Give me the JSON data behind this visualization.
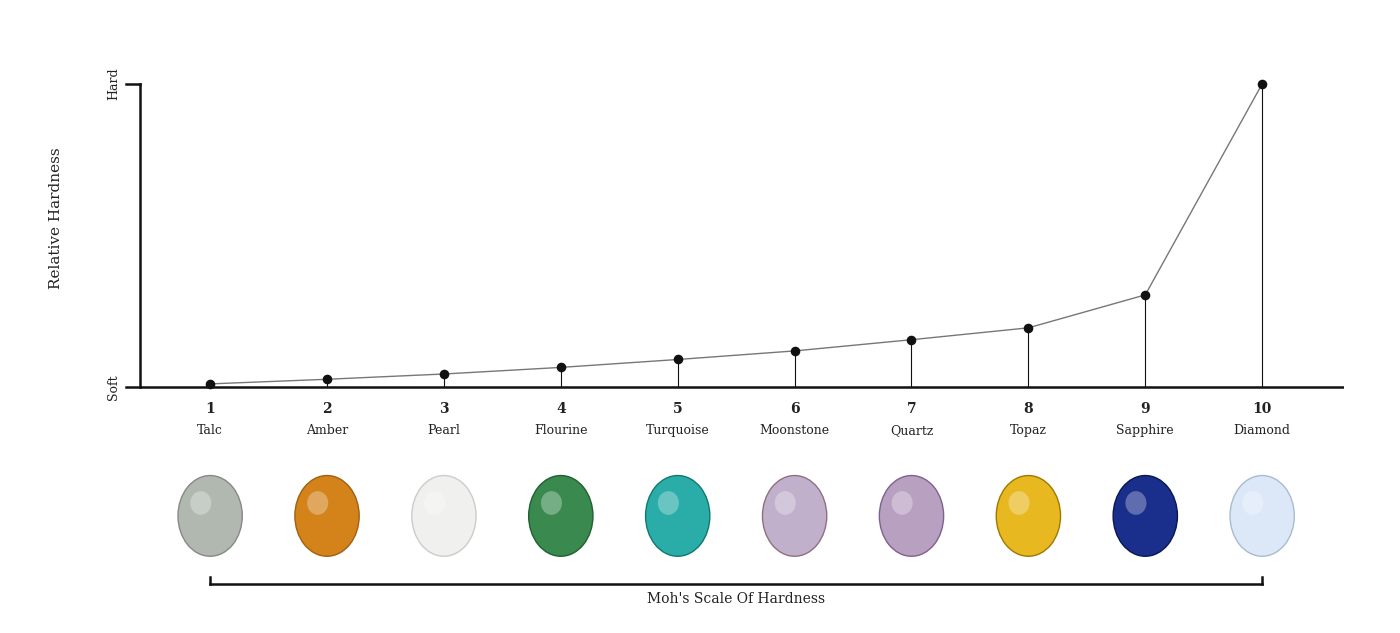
{
  "minerals": [
    "Talc",
    "Amber",
    "Pearl",
    "Flourine",
    "Turquoise",
    "Moonstone",
    "Quartz",
    "Topaz",
    "Sapphire",
    "Diamond"
  ],
  "mohs_numbers": [
    1,
    2,
    3,
    4,
    5,
    6,
    7,
    8,
    9,
    10
  ],
  "hardness_values": [
    0.05,
    0.12,
    0.2,
    0.3,
    0.42,
    0.55,
    0.72,
    0.9,
    1.4,
    4.6
  ],
  "ylabel": "Relative Hardness",
  "xlabel_bracket": "Moh's Scale Of Hardness",
  "soft_label": "Soft",
  "hard_label": "Hard",
  "line_color": "#777777",
  "dot_color": "#111111",
  "text_color": "#222222",
  "bg_color": "#ffffff",
  "axis_color": "#111111",
  "ylim_max": 5.2,
  "figsize": [
    14.0,
    6.33
  ],
  "dpi": 100,
  "gem_colors": [
    "#b0b8b0",
    "#d4821a",
    "#f0f0ee",
    "#3a8a50",
    "#2aada8",
    "#c0b0cc",
    "#b8a0c0",
    "#e8b820",
    "#1a2e8c",
    "#dce8f8"
  ],
  "gem_edge_colors": [
    "#888888",
    "#a06010",
    "#cccccc",
    "#206030",
    "#107870",
    "#907080",
    "#806090",
    "#a07800",
    "#0a1850",
    "#aabbd0"
  ]
}
